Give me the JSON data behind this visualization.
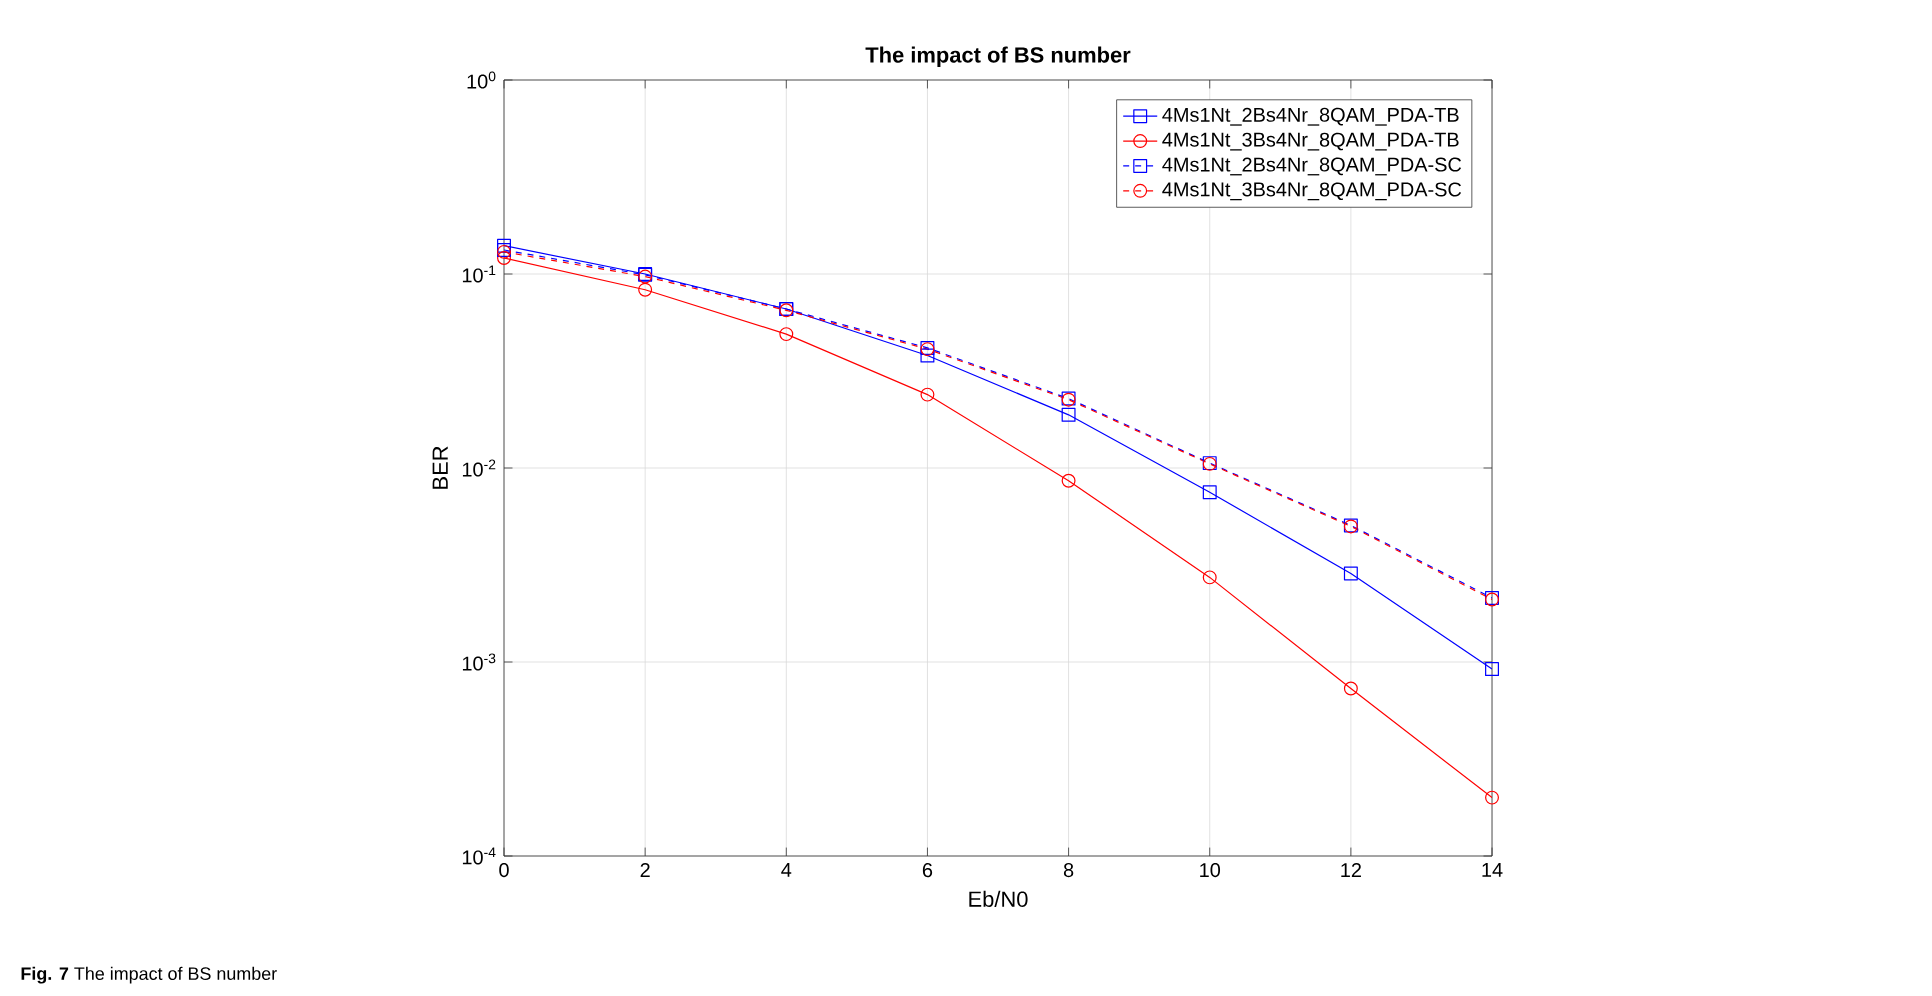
{
  "chart_data": {
    "type": "line",
    "title": "The impact of BS number",
    "xlabel": "Eb/N0",
    "ylabel": "BER",
    "x": [
      0,
      2,
      4,
      6,
      8,
      10,
      12,
      14
    ],
    "series": [
      {
        "name": "4Ms1Nt_2Bs4Nr_8QAM_PDA-TB",
        "color": "#0000ff",
        "marker": "square",
        "line_style": "solid",
        "values": [
          0.14,
          0.1,
          0.066,
          0.038,
          0.0188,
          0.0075,
          0.00286,
          0.00092
        ]
      },
      {
        "name": "4Ms1Nt_3Bs4Nr_8QAM_PDA-TB",
        "color": "#ff0000",
        "marker": "circle",
        "line_style": "solid",
        "values": [
          0.121,
          0.083,
          0.049,
          0.0239,
          0.0086,
          0.00273,
          0.00073,
          0.0002
        ]
      },
      {
        "name": "4Ms1Nt_2Bs4Nr_8QAM_PDA-SC",
        "color": "#0000ff",
        "marker": "square",
        "line_style": "dashed",
        "values": [
          0.133,
          0.099,
          0.066,
          0.0416,
          0.0228,
          0.0106,
          0.00506,
          0.00214
        ]
      },
      {
        "name": "4Ms1Nt_3Bs4Nr_8QAM_PDA-SC",
        "color": "#ff0000",
        "marker": "circle",
        "line_style": "dashed",
        "values": [
          0.13,
          0.097,
          0.065,
          0.041,
          0.0225,
          0.0105,
          0.005,
          0.0021
        ]
      }
    ],
    "xlim": [
      0,
      14
    ],
    "xticks": [
      0,
      2,
      4,
      6,
      8,
      10,
      12,
      14
    ],
    "ylim": [
      0.0001,
      1
    ],
    "yticks": [
      {
        "value": 0.0001,
        "label": "10$^{-4}$"
      },
      {
        "value": 0.001,
        "label": "10$^{-3}$"
      },
      {
        "value": 0.01,
        "label": "10$^{-2}$"
      },
      {
        "value": 0.1,
        "label": "10$^{-1}$"
      },
      {
        "value": 1,
        "label": "10$^{0}$"
      }
    ],
    "log": "y",
    "grid": true,
    "legend": "top right",
    "annotations": [
      "**Fig. 7** The impact of BS number"
    ]
  }
}
